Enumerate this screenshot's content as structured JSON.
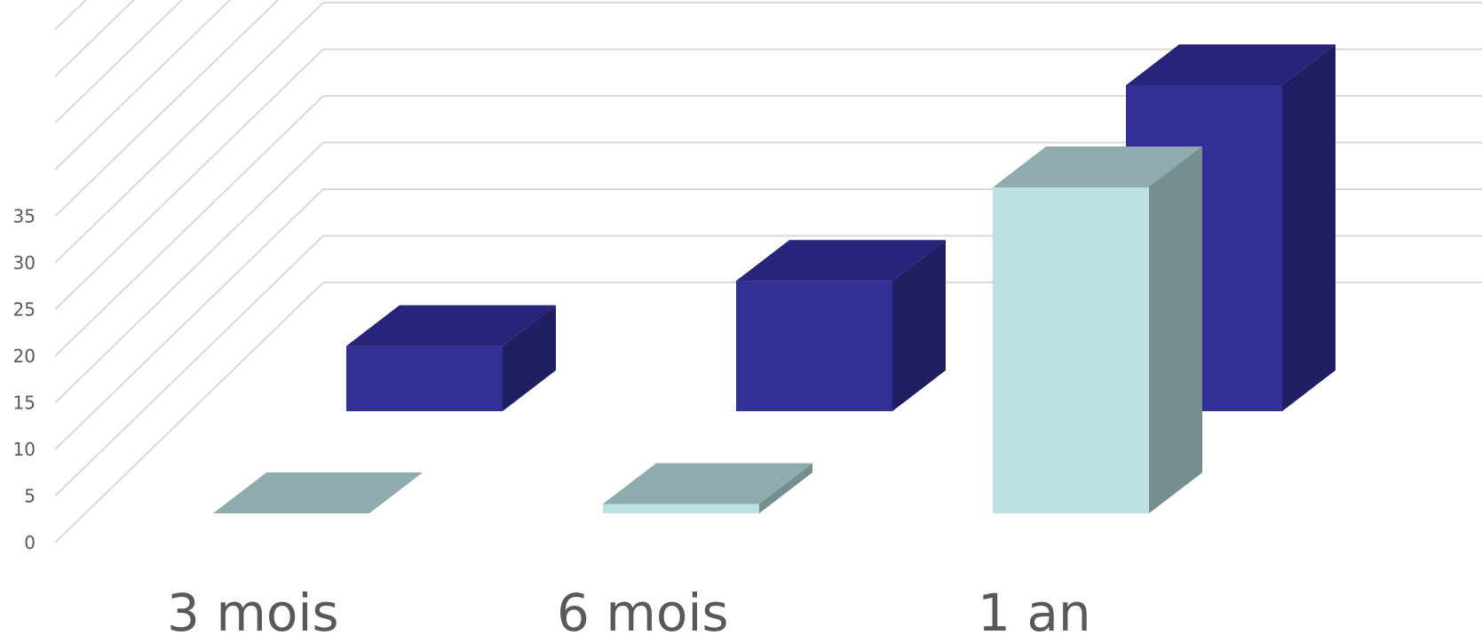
{
  "chart_data": {
    "type": "bar",
    "subtype": "3d-clustered-column",
    "categories": [
      "3 mois",
      "6 mois",
      "1 an"
    ],
    "series": [
      {
        "values": [
          0,
          1,
          35
        ],
        "colors": {
          "front": "#bbe1e2",
          "top": "#8eabad",
          "side": "#768e8f"
        }
      },
      {
        "values": [
          7,
          14,
          35
        ],
        "colors": {
          "front": "#333095",
          "top": "#272479",
          "side": "#211f64"
        }
      }
    ],
    "y_ticks": [
      "0",
      "5",
      "10",
      "15",
      "20",
      "25",
      "30",
      "35"
    ],
    "ylim": [
      0,
      35
    ],
    "grid": true,
    "legend": "none"
  }
}
